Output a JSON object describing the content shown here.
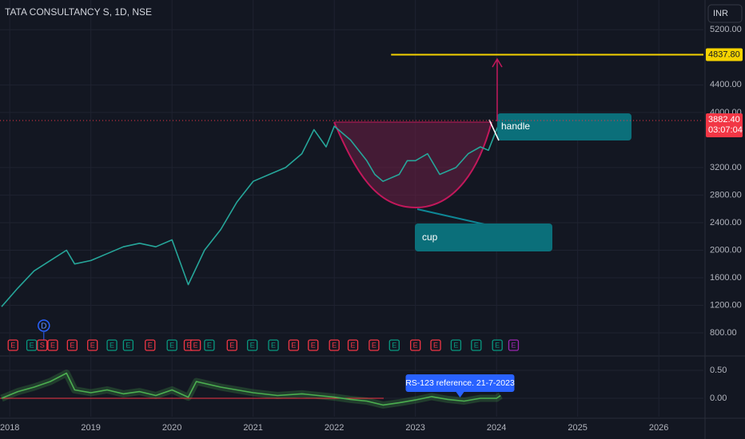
{
  "chart_data": [
    {
      "type": "line",
      "title": "TATA CONSULTANCY S, 1D, NSE",
      "currency": "INR",
      "color": "#26a69a",
      "x": [
        2017.9,
        2018.1,
        2018.3,
        2018.5,
        2018.7,
        2018.8,
        2019.0,
        2019.2,
        2019.4,
        2019.6,
        2019.8,
        2020.0,
        2020.2,
        2020.4,
        2020.6,
        2020.8,
        2021.0,
        2021.2,
        2021.4,
        2021.6,
        2021.75,
        2021.9,
        2022.0,
        2022.2,
        2022.4,
        2022.5,
        2022.6,
        2022.8,
        2022.9,
        2023.0,
        2023.15,
        2023.3,
        2023.5,
        2023.65,
        2023.8,
        2023.9,
        2024.0,
        2024.05
      ],
      "values": [
        1180,
        1450,
        1700,
        1850,
        2000,
        1800,
        1850,
        1950,
        2050,
        2100,
        2050,
        2150,
        1500,
        2000,
        2300,
        2700,
        3000,
        3100,
        3200,
        3400,
        3750,
        3500,
        3800,
        3600,
        3300,
        3100,
        3000,
        3100,
        3300,
        3300,
        3400,
        3100,
        3200,
        3400,
        3500,
        3450,
        3750,
        3882.4
      ],
      "xlim": [
        2017.88,
        2026.55
      ],
      "ylim": [
        476,
        5632
      ],
      "yticks": [
        {
          "value": 800,
          "label": "800.00"
        },
        {
          "value": 1200,
          "label": "1200.00"
        },
        {
          "value": 1600,
          "label": "1600.00"
        },
        {
          "value": 2000,
          "label": "2000.00"
        },
        {
          "value": 2400,
          "label": "2400.00"
        },
        {
          "value": 2800,
          "label": "2800.00"
        },
        {
          "value": 3200,
          "label": "3200.00"
        },
        {
          "value": 4000,
          "label": "4000.00"
        },
        {
          "value": 4400,
          "label": "4400.00"
        },
        {
          "value": 5200,
          "label": "5200.00"
        }
      ],
      "grid": true,
      "target": {
        "value": 4837.8,
        "label": "4837.80",
        "color": "#f5d300"
      },
      "last_price": {
        "value": 3882.4,
        "label": "3882.40",
        "countdown": "03:07:04",
        "color": "#f23645"
      },
      "annotations": [
        "handle",
        "cup"
      ],
      "dividend": {
        "x": 2018.42,
        "label": "D"
      },
      "events": [
        {
          "x": 2018.04,
          "label": "E",
          "color": "#f23645"
        },
        {
          "x": 2018.27,
          "label": "E",
          "color": "#089981"
        },
        {
          "x": 2018.4,
          "label": "S",
          "color": "#f23645"
        },
        {
          "x": 2018.53,
          "label": "E",
          "color": "#f23645"
        },
        {
          "x": 2018.77,
          "label": "E",
          "color": "#f23645"
        },
        {
          "x": 2019.02,
          "label": "E",
          "color": "#f23645"
        },
        {
          "x": 2019.26,
          "label": "E",
          "color": "#089981"
        },
        {
          "x": 2019.46,
          "label": "E",
          "color": "#089981"
        },
        {
          "x": 2019.73,
          "label": "E",
          "color": "#f23645"
        },
        {
          "x": 2020.0,
          "label": "E",
          "color": "#089981"
        },
        {
          "x": 2020.21,
          "label": "E",
          "color": "#f23645"
        },
        {
          "x": 2020.29,
          "label": "E",
          "color": "#f23645"
        },
        {
          "x": 2020.46,
          "label": "E",
          "color": "#089981"
        },
        {
          "x": 2020.74,
          "label": "E",
          "color": "#f23645"
        },
        {
          "x": 2020.99,
          "label": "E",
          "color": "#089981"
        },
        {
          "x": 2021.25,
          "label": "E",
          "color": "#089981"
        },
        {
          "x": 2021.5,
          "label": "E",
          "color": "#f23645"
        },
        {
          "x": 2021.74,
          "label": "E",
          "color": "#f23645"
        },
        {
          "x": 2022.0,
          "label": "E",
          "color": "#f23645"
        },
        {
          "x": 2022.23,
          "label": "E",
          "color": "#f23645"
        },
        {
          "x": 2022.49,
          "label": "E",
          "color": "#f23645"
        },
        {
          "x": 2022.74,
          "label": "E",
          "color": "#089981"
        },
        {
          "x": 2023.0,
          "label": "E",
          "color": "#f23645"
        },
        {
          "x": 2023.25,
          "label": "E",
          "color": "#f23645"
        },
        {
          "x": 2023.5,
          "label": "E",
          "color": "#089981"
        },
        {
          "x": 2023.75,
          "label": "E",
          "color": "#089981"
        },
        {
          "x": 2024.01,
          "label": "E",
          "color": "#089981"
        },
        {
          "x": 2024.21,
          "label": "E",
          "color": "#9c27b0"
        }
      ]
    },
    {
      "type": "line",
      "color": "#4caf50",
      "x": [
        2017.9,
        2018.1,
        2018.3,
        2018.5,
        2018.7,
        2018.8,
        2019.0,
        2019.2,
        2019.4,
        2019.6,
        2019.8,
        2020.0,
        2020.2,
        2020.3,
        2020.6,
        2020.8,
        2021.0,
        2021.3,
        2021.6,
        2021.8,
        2022.0,
        2022.2,
        2022.4,
        2022.6,
        2022.8,
        2023.0,
        2023.2,
        2023.4,
        2023.6,
        2023.8,
        2024.0,
        2024.05
      ],
      "values": [
        0.0,
        0.12,
        0.2,
        0.3,
        0.45,
        0.15,
        0.1,
        0.15,
        0.08,
        0.12,
        0.05,
        0.15,
        0.02,
        0.3,
        0.2,
        0.15,
        0.1,
        0.05,
        0.08,
        0.05,
        0.02,
        -0.02,
        -0.05,
        -0.12,
        -0.08,
        -0.03,
        0.03,
        -0.02,
        -0.05,
        0.0,
        0.0,
        0.05
      ],
      "xlim": [
        2017.88,
        2026.55
      ],
      "ylim": [
        -0.329,
        0.743
      ],
      "yticks": [
        {
          "value": 0.5,
          "label": "0.50"
        },
        {
          "value": 0,
          "label": "0.00"
        }
      ],
      "xticks": [
        2018,
        2019,
        2020,
        2021,
        2022,
        2023,
        2024,
        2025,
        2026
      ],
      "annotation": "RS-123 reference. 21-7-2023"
    }
  ]
}
